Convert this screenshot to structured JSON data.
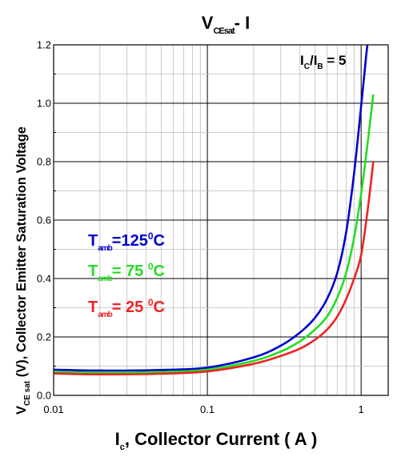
{
  "chart_data": {
    "type": "line",
    "title": {
      "main": "V",
      "sub": "CEsat",
      "rest": "- I"
    },
    "xlabel": {
      "main": "I",
      "sub": "c",
      "rest": ",  Collector  Current ( A )"
    },
    "ylabel": {
      "main": "V",
      "sub": "CE sat",
      "rest": " (V), Collector Emitter Saturation Voltage"
    },
    "x_scale": "log",
    "xlim": [
      0.01,
      1.5
    ],
    "ylim": [
      0.0,
      1.2
    ],
    "x_ticks": [
      {
        "value": 0.01,
        "label": "0.01"
      },
      {
        "value": 0.1,
        "label": "0.1"
      },
      {
        "value": 1,
        "label": "1"
      }
    ],
    "y_ticks": [
      {
        "value": 0.0,
        "label": "0.0"
      },
      {
        "value": 0.2,
        "label": "0.2"
      },
      {
        "value": 0.4,
        "label": "0.4"
      },
      {
        "value": 0.6,
        "label": "0.6"
      },
      {
        "value": 0.8,
        "label": "0.8"
      },
      {
        "value": 1.0,
        "label": "1.0"
      },
      {
        "value": 1.2,
        "label": "1.2"
      }
    ],
    "grid": true,
    "annotation": {
      "p1": "I",
      "s1": "C",
      "p2": "/I",
      "s2": "B",
      "p3": " = 5"
    },
    "series": [
      {
        "legend": {
          "p": "T",
          "s": "amb",
          "r": "=125",
          "sup": "0",
          "unit": "C"
        },
        "color": "#0000cc",
        "x": [
          0.01,
          0.02,
          0.05,
          0.1,
          0.2,
          0.3,
          0.4,
          0.5,
          0.6,
          0.7,
          0.8,
          0.9,
          1.0,
          1.05,
          1.1,
          1.15
        ],
        "y": [
          0.088,
          0.085,
          0.087,
          0.095,
          0.13,
          0.17,
          0.215,
          0.265,
          0.33,
          0.42,
          0.56,
          0.76,
          0.99,
          1.1,
          1.2,
          1.22
        ]
      },
      {
        "legend": {
          "p": "T",
          "s": "amb",
          "r": "= 75 ",
          "sup": "0",
          "unit": "C"
        },
        "color": "#22dd22",
        "x": [
          0.01,
          0.02,
          0.05,
          0.1,
          0.2,
          0.3,
          0.4,
          0.5,
          0.6,
          0.7,
          0.8,
          0.9,
          1.0,
          1.1,
          1.2
        ],
        "y": [
          0.08,
          0.078,
          0.08,
          0.088,
          0.118,
          0.15,
          0.185,
          0.225,
          0.27,
          0.335,
          0.42,
          0.54,
          0.69,
          0.86,
          1.03
        ]
      },
      {
        "legend": {
          "p": "T",
          "s": "amb",
          "r": "= 25 ",
          "sup": "0",
          "unit": "C"
        },
        "color": "#ee2222",
        "x": [
          0.01,
          0.02,
          0.05,
          0.1,
          0.2,
          0.3,
          0.4,
          0.5,
          0.6,
          0.7,
          0.8,
          0.9,
          1.0,
          1.1,
          1.2
        ],
        "y": [
          0.075,
          0.072,
          0.074,
          0.082,
          0.108,
          0.135,
          0.16,
          0.19,
          0.225,
          0.27,
          0.33,
          0.4,
          0.48,
          0.63,
          0.8
        ]
      }
    ]
  }
}
